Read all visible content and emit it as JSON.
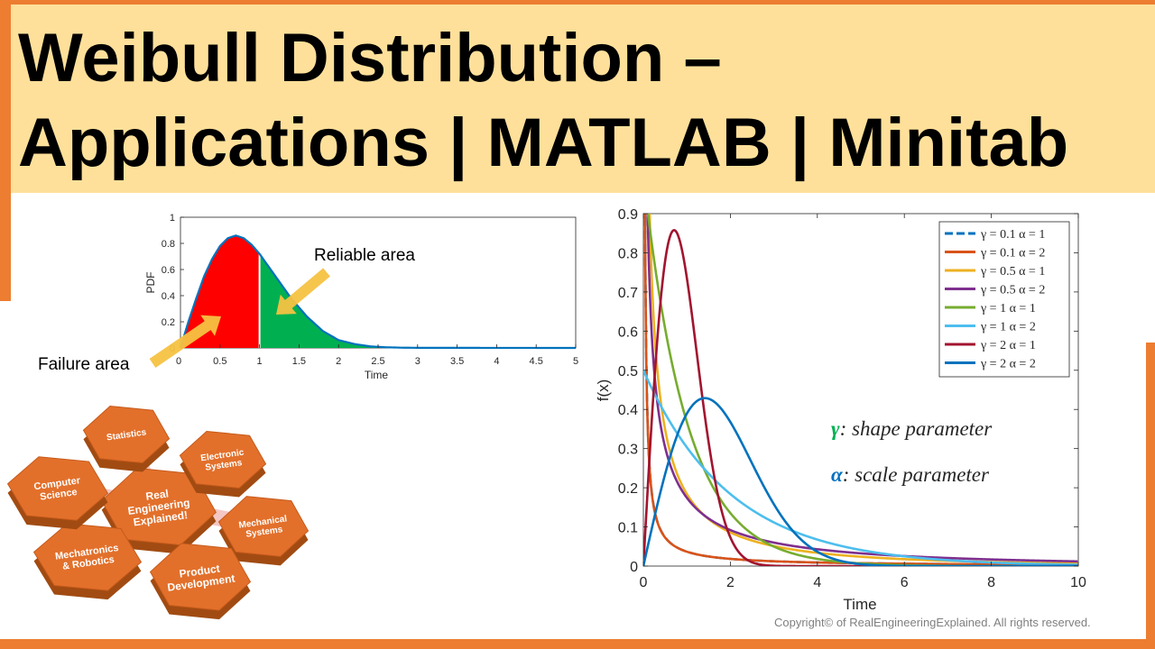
{
  "title": {
    "line1": "Weibull Distribution –",
    "line2": "Applications | MATLAB | Minitab"
  },
  "colors": {
    "accent": "#ED7D31",
    "banner": "#FFE09A",
    "failure": "#FF0000",
    "reliable": "#00B050",
    "arrow": "#F5C242",
    "curve": "#0072BD"
  },
  "left_chart": {
    "annotations": {
      "reliable": "Reliable area",
      "failure": "Failure area"
    }
  },
  "right_chart": {
    "param_labels": {
      "shape_symbol": "γ",
      "shape_text": ": shape parameter",
      "scale_symbol": "α",
      "scale_text": ": scale parameter"
    }
  },
  "hexagons": {
    "center": "Real Engineering Explained!",
    "items": [
      "Statistics",
      "Electronic Systems",
      "Mechanical Systems",
      "Product Development",
      "Mechatronics & Robotics",
      "Computer Science"
    ]
  },
  "copyright": "Copyright© of RealEngineeringExplained. All rights reserved.",
  "chart_data": [
    {
      "type": "area",
      "title": "",
      "xlabel": "Time",
      "ylabel": "PDF",
      "xlim": [
        0,
        5
      ],
      "ylim": [
        0,
        1
      ],
      "xticks": [
        "0",
        "0.5",
        "1",
        "1.5",
        "2",
        "2.5",
        "3",
        "3.5",
        "4",
        "4.5",
        "5"
      ],
      "yticks": [
        "0",
        "0.2",
        "0.4",
        "0.6",
        "0.8",
        "1"
      ],
      "series": [
        {
          "x": [
            0,
            0.1,
            0.2,
            0.3,
            0.4,
            0.5,
            0.6,
            0.7,
            0.8,
            0.9,
            1.0,
            1.2,
            1.4,
            1.6,
            1.8,
            2.0,
            2.2,
            2.4,
            2.6,
            2.8,
            3.0,
            5.0
          ],
          "y": [
            0,
            0.2,
            0.38,
            0.55,
            0.68,
            0.78,
            0.84,
            0.86,
            0.84,
            0.79,
            0.72,
            0.55,
            0.38,
            0.24,
            0.13,
            0.06,
            0.03,
            0.012,
            0.005,
            0.002,
            0.001,
            0
          ]
        }
      ],
      "shaded_regions": [
        {
          "label": "Failure area",
          "from": 0,
          "to": 1,
          "color": "#FF0000"
        },
        {
          "label": "Reliable area",
          "from": 1,
          "to": 5,
          "color": "#00B050"
        }
      ]
    },
    {
      "type": "line",
      "title": "",
      "xlabel": "Time",
      "ylabel": "f(x)",
      "xlim": [
        0,
        10
      ],
      "ylim": [
        0,
        0.9
      ],
      "xticks": [
        "0",
        "2",
        "4",
        "6",
        "8",
        "10"
      ],
      "yticks": [
        "0",
        "0.1",
        "0.2",
        "0.3",
        "0.4",
        "0.5",
        "0.6",
        "0.7",
        "0.8",
        "0.9"
      ],
      "legend_position": "top-right",
      "series": [
        {
          "name": "γ = 0.1  α = 1",
          "color": "#0072BD",
          "dashed": true,
          "gamma": 0.1,
          "alpha": 1
        },
        {
          "name": "γ = 0.1  α = 2",
          "color": "#D95319",
          "gamma": 0.1,
          "alpha": 2
        },
        {
          "name": "γ = 0.5  α = 1",
          "color": "#EDB120",
          "gamma": 0.5,
          "alpha": 1
        },
        {
          "name": "γ = 0.5  α = 2",
          "color": "#7E2F8E",
          "gamma": 0.5,
          "alpha": 2
        },
        {
          "name": "γ = 1    α = 1",
          "color": "#77AC30",
          "gamma": 1,
          "alpha": 1
        },
        {
          "name": "γ = 1    α = 2",
          "color": "#4DBEEE",
          "gamma": 1,
          "alpha": 2
        },
        {
          "name": "γ = 2    α = 1",
          "color": "#A2142F",
          "gamma": 2,
          "alpha": 1
        },
        {
          "name": "γ = 2    α = 2",
          "color": "#0072BD",
          "gamma": 2,
          "alpha": 2
        }
      ]
    }
  ]
}
